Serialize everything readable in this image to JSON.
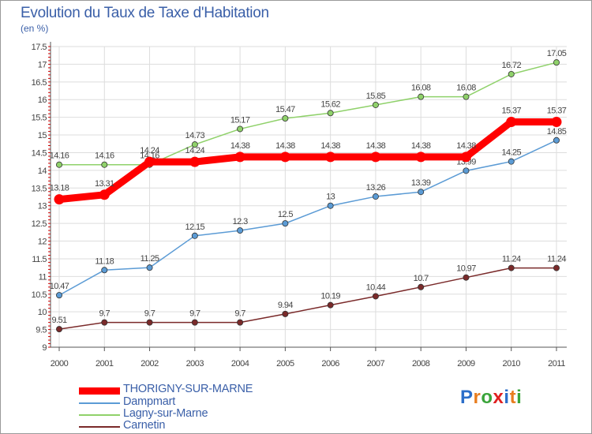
{
  "title": "Evolution du Taux de Taxe d'Habitation",
  "subtitle": "(en %)",
  "logo": "Proxiti",
  "chart_data": {
    "type": "line",
    "title": "Evolution du Taux de Taxe d'Habitation",
    "ylabel": "(en %)",
    "xlabel": "",
    "x": [
      "2000",
      "2001",
      "2002",
      "2003",
      "2004",
      "2005",
      "2006",
      "2007",
      "2008",
      "2009",
      "2010",
      "2011"
    ],
    "ylim": [
      9,
      17.5
    ],
    "yticks": [
      9,
      9.5,
      10,
      10.5,
      11,
      11.5,
      12,
      12.5,
      13,
      13.5,
      14,
      14.5,
      15,
      15.5,
      16,
      16.5,
      17,
      17.5
    ],
    "grid": true,
    "legend_position": "bottom-left",
    "series": [
      {
        "name": "THORIGNY-SUR-MARNE",
        "color": "#ff0000",
        "values": [
          13.18,
          13.31,
          14.24,
          14.24,
          14.38,
          14.38,
          14.38,
          14.38,
          14.38,
          14.38,
          15.37,
          15.37
        ]
      },
      {
        "name": "Dampmart",
        "color": "#5b9bd5",
        "values": [
          10.47,
          11.18,
          11.25,
          12.15,
          12.3,
          12.5,
          13,
          13.26,
          13.39,
          13.99,
          14.25,
          14.85
        ]
      },
      {
        "name": "Lagny-sur-Marne",
        "color": "#8fd16a",
        "values": [
          14.16,
          14.16,
          14.16,
          14.73,
          15.17,
          15.47,
          15.62,
          15.85,
          16.08,
          16.08,
          16.72,
          17.05
        ]
      },
      {
        "name": "Carnetin",
        "color": "#7a2a2a",
        "values": [
          9.51,
          9.7,
          9.7,
          9.7,
          9.7,
          9.94,
          10.19,
          10.44,
          10.7,
          10.97,
          11.24,
          11.24
        ]
      }
    ]
  },
  "colors": {
    "axis": "#555555",
    "grid": "#dddddd",
    "text": "#3a5fa8",
    "label": "#444444",
    "tick_red": "#cc0000",
    "logo_letters": [
      "#2b6ec9",
      "#e87d1e",
      "#3aa43a",
      "#e02020",
      "#2b6ec9",
      "#e87d1e",
      "#3aa43a"
    ]
  }
}
